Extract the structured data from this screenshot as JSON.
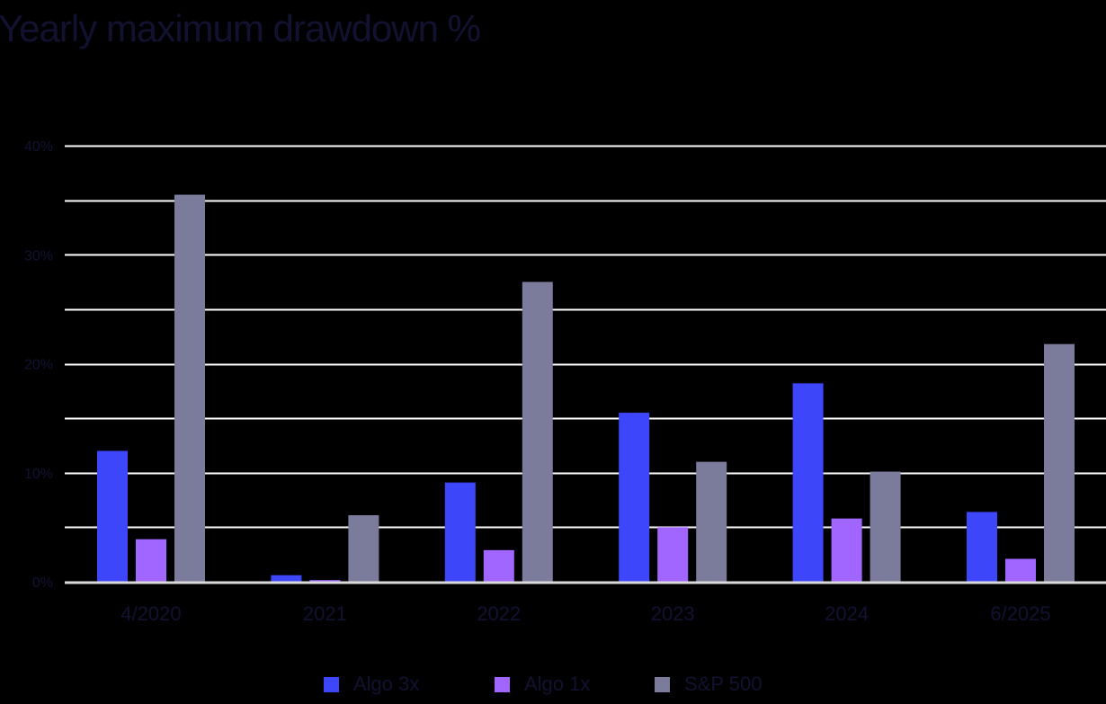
{
  "title": "Yearly maximum drawdown %",
  "colors": {
    "background": "#000000",
    "text": "#121230",
    "gridline": "#ffffff",
    "baseline": "#d9d9d9",
    "algo_3x": "#3d46f8",
    "algo_1x": "#a066ff",
    "sp500": "#7b7b9b"
  },
  "legend": [
    {
      "label": "Algo 3x",
      "color": "#3d46f8"
    },
    {
      "label": "Algo 1x",
      "color": "#a066ff"
    },
    {
      "label": "S&P 500",
      "color": "#7b7b9b"
    }
  ],
  "y_axis": {
    "tick_labels": [
      "0%",
      "10%",
      "20%",
      "30%",
      "40%"
    ]
  },
  "chart_data": {
    "type": "bar",
    "title": "Yearly maximum drawdown %",
    "xlabel": "",
    "ylabel": "",
    "categories": [
      "4/2020",
      "2021",
      "2022",
      "2023",
      "2024",
      "6/2025"
    ],
    "series": [
      {
        "name": "Algo 3x",
        "color": "#3d46f8",
        "values": [
          12.0,
          0.6,
          9.1,
          15.5,
          18.2,
          6.4
        ]
      },
      {
        "name": "Algo 1x",
        "color": "#a066ff",
        "values": [
          3.9,
          0.15,
          2.9,
          5.0,
          5.8,
          2.1
        ]
      },
      {
        "name": "S&P 500",
        "color": "#7b7b9b",
        "values": [
          35.5,
          6.1,
          27.5,
          11.0,
          10.1,
          21.8
        ]
      }
    ],
    "ylim": [
      0,
      40
    ],
    "yticks": [
      0,
      10,
      20,
      30,
      40
    ],
    "gridlines_every": 5,
    "grid": true,
    "legend_position": "bottom"
  }
}
